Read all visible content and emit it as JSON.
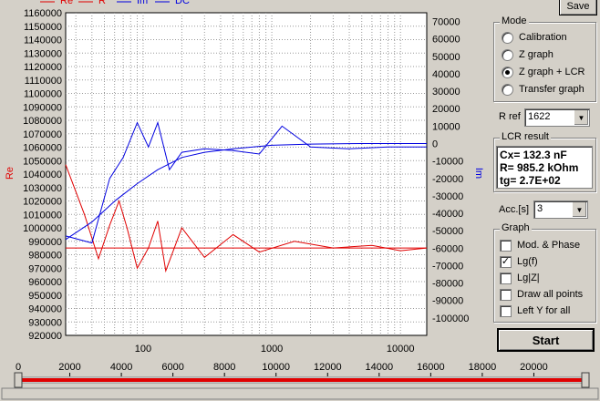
{
  "toolbar": {
    "save_label": "Save"
  },
  "legend": [
    {
      "label": "Re",
      "color": "#e00000"
    },
    {
      "label": "R",
      "color": "#e00000"
    },
    {
      "label": "Im",
      "color": "#0000e0"
    },
    {
      "label": "DC",
      "color": "#0000e0"
    }
  ],
  "mode": {
    "title": "Mode",
    "options": [
      {
        "label": "Calibration",
        "selected": false
      },
      {
        "label": "Z graph",
        "selected": false
      },
      {
        "label": "Z graph + LCR",
        "selected": true
      },
      {
        "label": "Transfer graph",
        "selected": false
      }
    ]
  },
  "rref": {
    "label": "R ref",
    "value": "1622"
  },
  "lcr": {
    "title": "LCR result",
    "lines": [
      "Cx= 132.3 nF",
      "R= 985.2 kOhm",
      "tg= 2.7E+02"
    ]
  },
  "acc": {
    "label": "Acc.[s]",
    "value": "3"
  },
  "graph": {
    "title": "Graph",
    "options": [
      {
        "label": "Mod. & Phase",
        "checked": false
      },
      {
        "label": "Lg(f)",
        "checked": true
      },
      {
        "label": "Lg|Z|",
        "checked": false
      },
      {
        "label": "Draw all points",
        "checked": false
      },
      {
        "label": "Left Y for all",
        "checked": false
      }
    ]
  },
  "start_label": "Start",
  "slider": {
    "ticks": [
      "0",
      "2000",
      "4000",
      "6000",
      "8000",
      "10000",
      "12000",
      "14000",
      "16000",
      "18000",
      "20000"
    ],
    "max": 22000,
    "range": [
      0,
      22000
    ]
  },
  "chart_data": {
    "type": "line",
    "x_scale": "log",
    "xlim": [
      25,
      16000
    ],
    "x_ticks": [
      "100",
      "1000",
      "10000"
    ],
    "y_left": {
      "label": "Re",
      "ylim": [
        920000,
        1160000
      ],
      "ticks": [
        "1160000",
        "1150000",
        "1140000",
        "1130000",
        "1120000",
        "1110000",
        "1100000",
        "1090000",
        "1080000",
        "1070000",
        "1060000",
        "1050000",
        "1040000",
        "1030000",
        "1020000",
        "1010000",
        "1000000",
        "990000",
        "980000",
        "970000",
        "960000",
        "950000",
        "940000",
        "930000",
        "920000"
      ]
    },
    "y_right": {
      "label": "Im",
      "ylim": [
        -110000,
        75000
      ],
      "ticks": [
        "70000",
        "60000",
        "50000",
        "40000",
        "30000",
        "20000",
        "10000",
        "0",
        "-10000",
        "-20000",
        "-30000",
        "-40000",
        "-50000",
        "-60000",
        "-70000",
        "-80000",
        "-90000",
        "-100000"
      ]
    },
    "grid": true,
    "series": [
      {
        "name": "Re",
        "axis": "left",
        "color": "#e00000",
        "x": [
          25,
          35,
          45,
          55,
          65,
          75,
          90,
          110,
          130,
          150,
          200,
          300,
          500,
          800,
          1500,
          3000,
          6000,
          10000,
          16000
        ],
        "y": [
          1047000,
          1010000,
          977000,
          1002000,
          1020000,
          1000000,
          970000,
          985000,
          1005000,
          968000,
          1000000,
          978000,
          995000,
          982000,
          990000,
          985000,
          987000,
          983000,
          985000
        ]
      },
      {
        "name": "R",
        "axis": "left",
        "color": "#e00000",
        "x": [
          25,
          16000
        ],
        "y": [
          985000,
          985000
        ]
      },
      {
        "name": "Im",
        "axis": "right",
        "color": "#0000e0",
        "x": [
          25,
          40,
          55,
          70,
          90,
          110,
          130,
          160,
          200,
          300,
          500,
          800,
          1200,
          2000,
          4000,
          8000,
          16000
        ],
        "y": [
          -53000,
          -57000,
          -20000,
          -8000,
          12000,
          -2000,
          12000,
          -15000,
          -5000,
          -3000,
          -4000,
          -6000,
          10000,
          -2000,
          -3000,
          -2000,
          -2000
        ]
      },
      {
        "name": "DC",
        "axis": "right",
        "color": "#0000e0",
        "x": [
          25,
          40,
          60,
          90,
          130,
          200,
          300,
          500,
          1000,
          2000,
          5000,
          16000
        ],
        "y": [
          -55000,
          -45000,
          -33000,
          -23000,
          -15000,
          -8000,
          -5000,
          -3000,
          -1000,
          -300,
          0,
          0
        ]
      }
    ]
  }
}
